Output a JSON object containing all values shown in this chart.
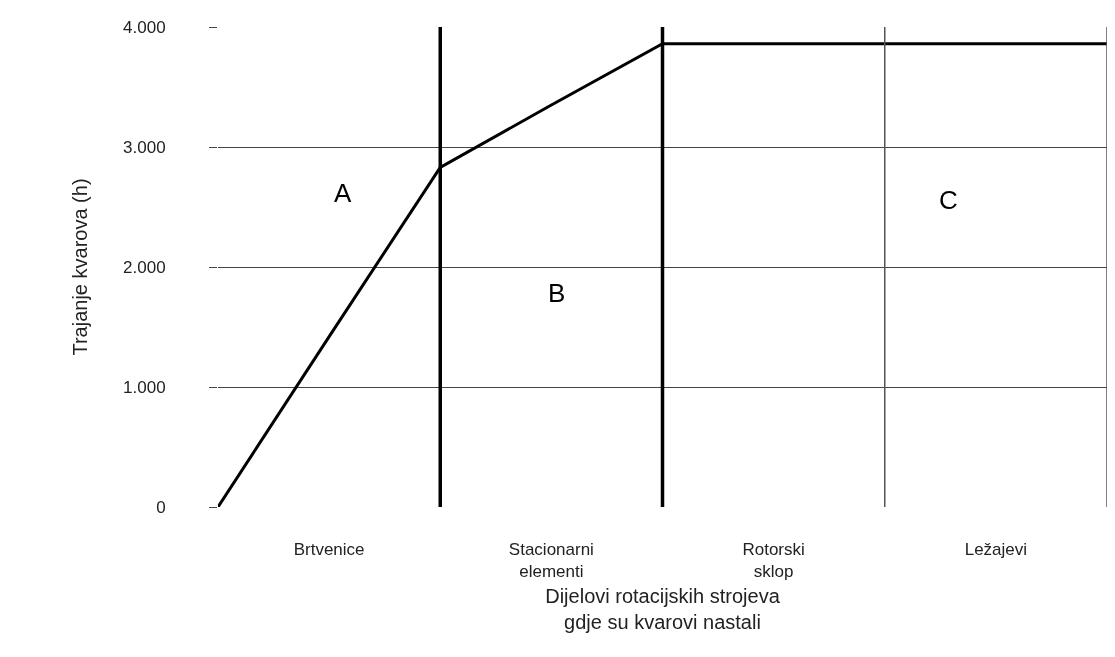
{
  "chart_data": {
    "type": "line",
    "xlabel": "Dijelovi rotacijskih strojeva gdje su kvarovi nastali",
    "ylabel": "Trajanje kvarova (h)",
    "categories": [
      null,
      "Brtvenice",
      null,
      "Stacionarni elementi",
      null,
      "Rotorski sklop",
      null,
      "Ležajevi",
      null
    ],
    "series": [
      {
        "color": "#000000",
        "values": [
          0,
          1420,
          2830,
          3350,
          3860,
          3860,
          3860,
          3860,
          3860
        ]
      }
    ],
    "ylim": [
      0,
      4000
    ],
    "yticks": [
      0,
      {
        "value": 1000,
        "label": "1.000"
      },
      {
        "value": 2000,
        "label": "2.000"
      },
      {
        "value": 3000,
        "label": "3.000"
      },
      {
        "value": 4000,
        "label": "4.000"
      }
    ],
    "annotations": [
      "A",
      "B",
      "C"
    ],
    "grid": true,
    "marker": "none",
    "line_style": "solid"
  }
}
